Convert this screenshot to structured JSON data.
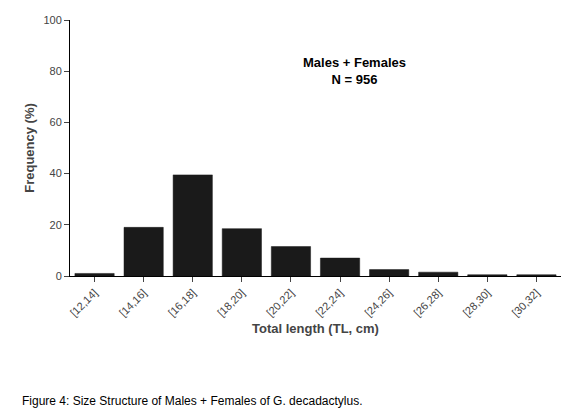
{
  "chart_data": {
    "type": "bar",
    "categories": [
      "[12,14]",
      "[14,16]",
      "[16,18]",
      "[18,20]",
      "[20,22]",
      "[22,24]",
      "[24,26]",
      "[26,28]",
      "[28,30]",
      "[30,32]"
    ],
    "values": [
      1.0,
      19.0,
      39.5,
      18.5,
      11.5,
      7.0,
      2.5,
      1.5,
      0.5,
      0.5
    ],
    "color": "#1a1a1a",
    "x_label": "Total length (TL, cm)",
    "y_label": "Frequency (%)",
    "ylim": [
      0,
      100
    ],
    "yticks": [
      0,
      20,
      40,
      60,
      80,
      100
    ],
    "grid": false,
    "annotations": [
      "Males + Females\nN = 956",
      "Figure 4: Size Structure of Males + Females of G. decadactylus."
    ]
  }
}
